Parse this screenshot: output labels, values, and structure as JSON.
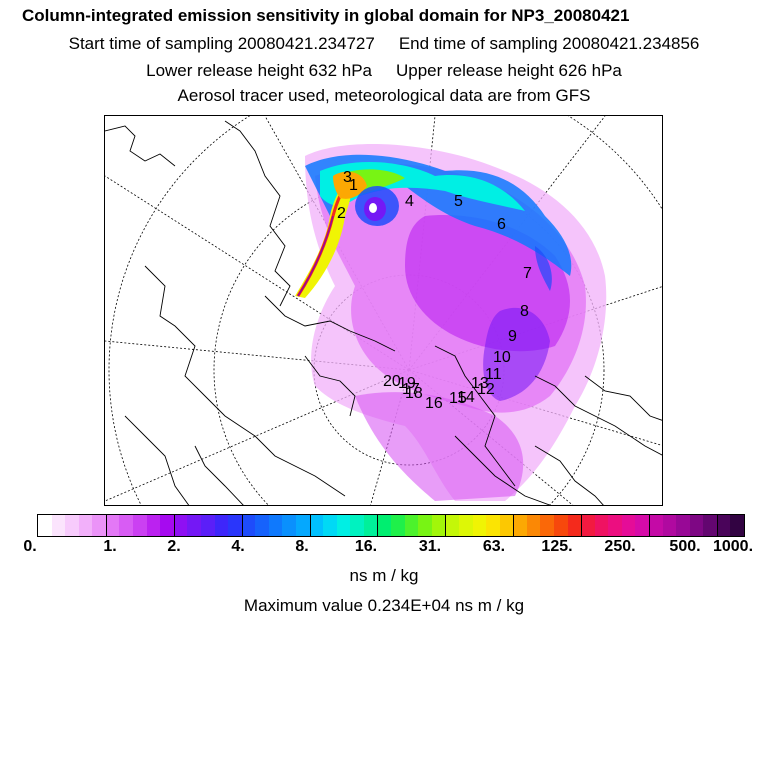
{
  "header": {
    "title": "Column-integrated emission sensitivity in global domain for NP3_20080421",
    "start_label": "Start time of sampling 20080421.234727",
    "end_label": "End time of sampling 20080421.234856",
    "lower_label": "Lower release height  632 hPa",
    "upper_label": "Upper release height  626 hPa",
    "tracer_label": "Aerosol tracer used, meteorological data are from GFS"
  },
  "map": {
    "projection": "polar stereographic (north)",
    "trajectory_labels": [
      "1",
      "2",
      "3",
      "4",
      "5",
      "6",
      "7",
      "8",
      "9",
      "10",
      "11",
      "12",
      "13",
      "14",
      "15",
      "16",
      "17",
      "18",
      "19",
      "20"
    ]
  },
  "colorbar": {
    "tick_labels": [
      "0.",
      "1.",
      "2.",
      "4.",
      "8.",
      "16.",
      "31.",
      "63.",
      "125.",
      "250.",
      "500.",
      "1000."
    ],
    "colors": [
      "#ffffff",
      "#fbe4fd",
      "#f7cbfc",
      "#f2b0fa",
      "#eb93f8",
      "#e378f6",
      "#d85cf4",
      "#cb40f2",
      "#bb22f0",
      "#a60af0",
      "#8f10f3",
      "#7418f5",
      "#5b1ff8",
      "#3e26fa",
      "#2a36fb",
      "#1e4cfb",
      "#1662fc",
      "#0f79fd",
      "#0a90fd",
      "#05a8fe",
      "#00c0fe",
      "#00d9f5",
      "#00efe4",
      "#00f2c0",
      "#00f09a",
      "#00ee70",
      "#1ff04a",
      "#4cf22c",
      "#78f414",
      "#a2f60a",
      "#c4f708",
      "#ddf706",
      "#f0f404",
      "#fbe403",
      "#fcc802",
      "#fca803",
      "#fb8805",
      "#fa6808",
      "#f7480c",
      "#f42a1c",
      "#f21a40",
      "#ef1262",
      "#ec0e80",
      "#e50c98",
      "#d60ba8",
      "#c40aa6",
      "#b009a0",
      "#980896",
      "#7e0784",
      "#630670",
      "#4a045a",
      "#320342"
    ],
    "units_label": "ns m / kg"
  },
  "footer": {
    "max_label": "Maximum value  0.234E+04 ns m / kg"
  }
}
